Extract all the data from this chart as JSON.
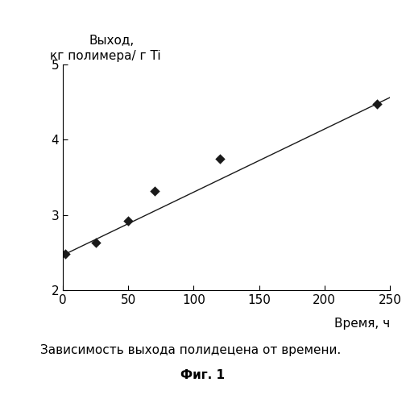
{
  "scatter_x": [
    2,
    25,
    50,
    70,
    120,
    240
  ],
  "scatter_y": [
    2.48,
    2.63,
    2.92,
    3.32,
    3.75,
    4.47
  ],
  "line_x": [
    0,
    250
  ],
  "line_y": [
    2.465,
    4.56
  ],
  "xlim": [
    0,
    250
  ],
  "ylim": [
    2.0,
    5.0
  ],
  "xticks": [
    0,
    50,
    100,
    150,
    200,
    250
  ],
  "yticks": [
    2,
    3,
    4,
    5
  ],
  "xlabel": "Время, ч",
  "ylabel1": "Выход,",
  "ylabel2": "кг полимера/ г Ti",
  "caption_line1": "Зависимость выхода полидецена от времени.",
  "caption_line2": "Фиг. 1",
  "marker_color": "#1a1a1a",
  "line_color": "#1a1a1a",
  "background_color": "#ffffff",
  "font_size": 11,
  "caption_font_size": 11,
  "fig_font_size": 11
}
